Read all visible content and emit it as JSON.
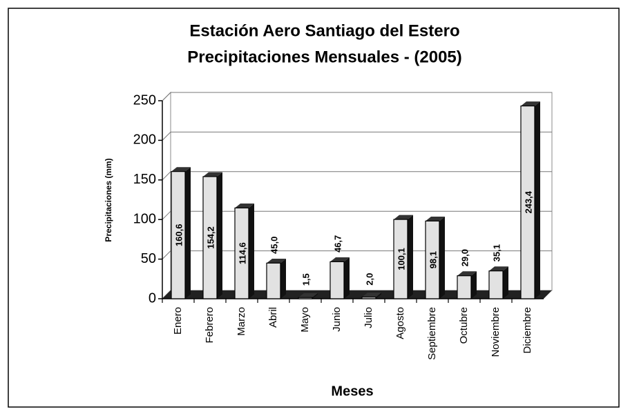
{
  "chart_data": {
    "type": "bar",
    "title": "Estación Aero Santiago del Estero",
    "subtitle": "Precipitaciones Mensuales - (2005)",
    "x_label": "Meses",
    "y_label": "Precipitaciones (mm)",
    "categories": [
      "Enero",
      "Febrero",
      "Marzo",
      "Abril",
      "Mayo",
      "Junio",
      "Julio",
      "Agosto",
      "Septiembre",
      "Octubre",
      "Noviembre",
      "Diciembre"
    ],
    "values": [
      160.6,
      154.2,
      114.6,
      45.0,
      1.5,
      46.7,
      2.0,
      100.1,
      98.1,
      29.0,
      35.1,
      243.4
    ],
    "value_labels": [
      "160,6",
      "154,2",
      "114,6",
      "45,0",
      "1,5",
      "46,7",
      "2,0",
      "100,1",
      "98,1",
      "29,0",
      "35,1",
      "243,4"
    ],
    "color": "#e2e2e2",
    "ylim": [
      0,
      250
    ],
    "yticks": [
      0,
      50,
      100,
      150,
      200,
      250
    ],
    "grid": true
  }
}
